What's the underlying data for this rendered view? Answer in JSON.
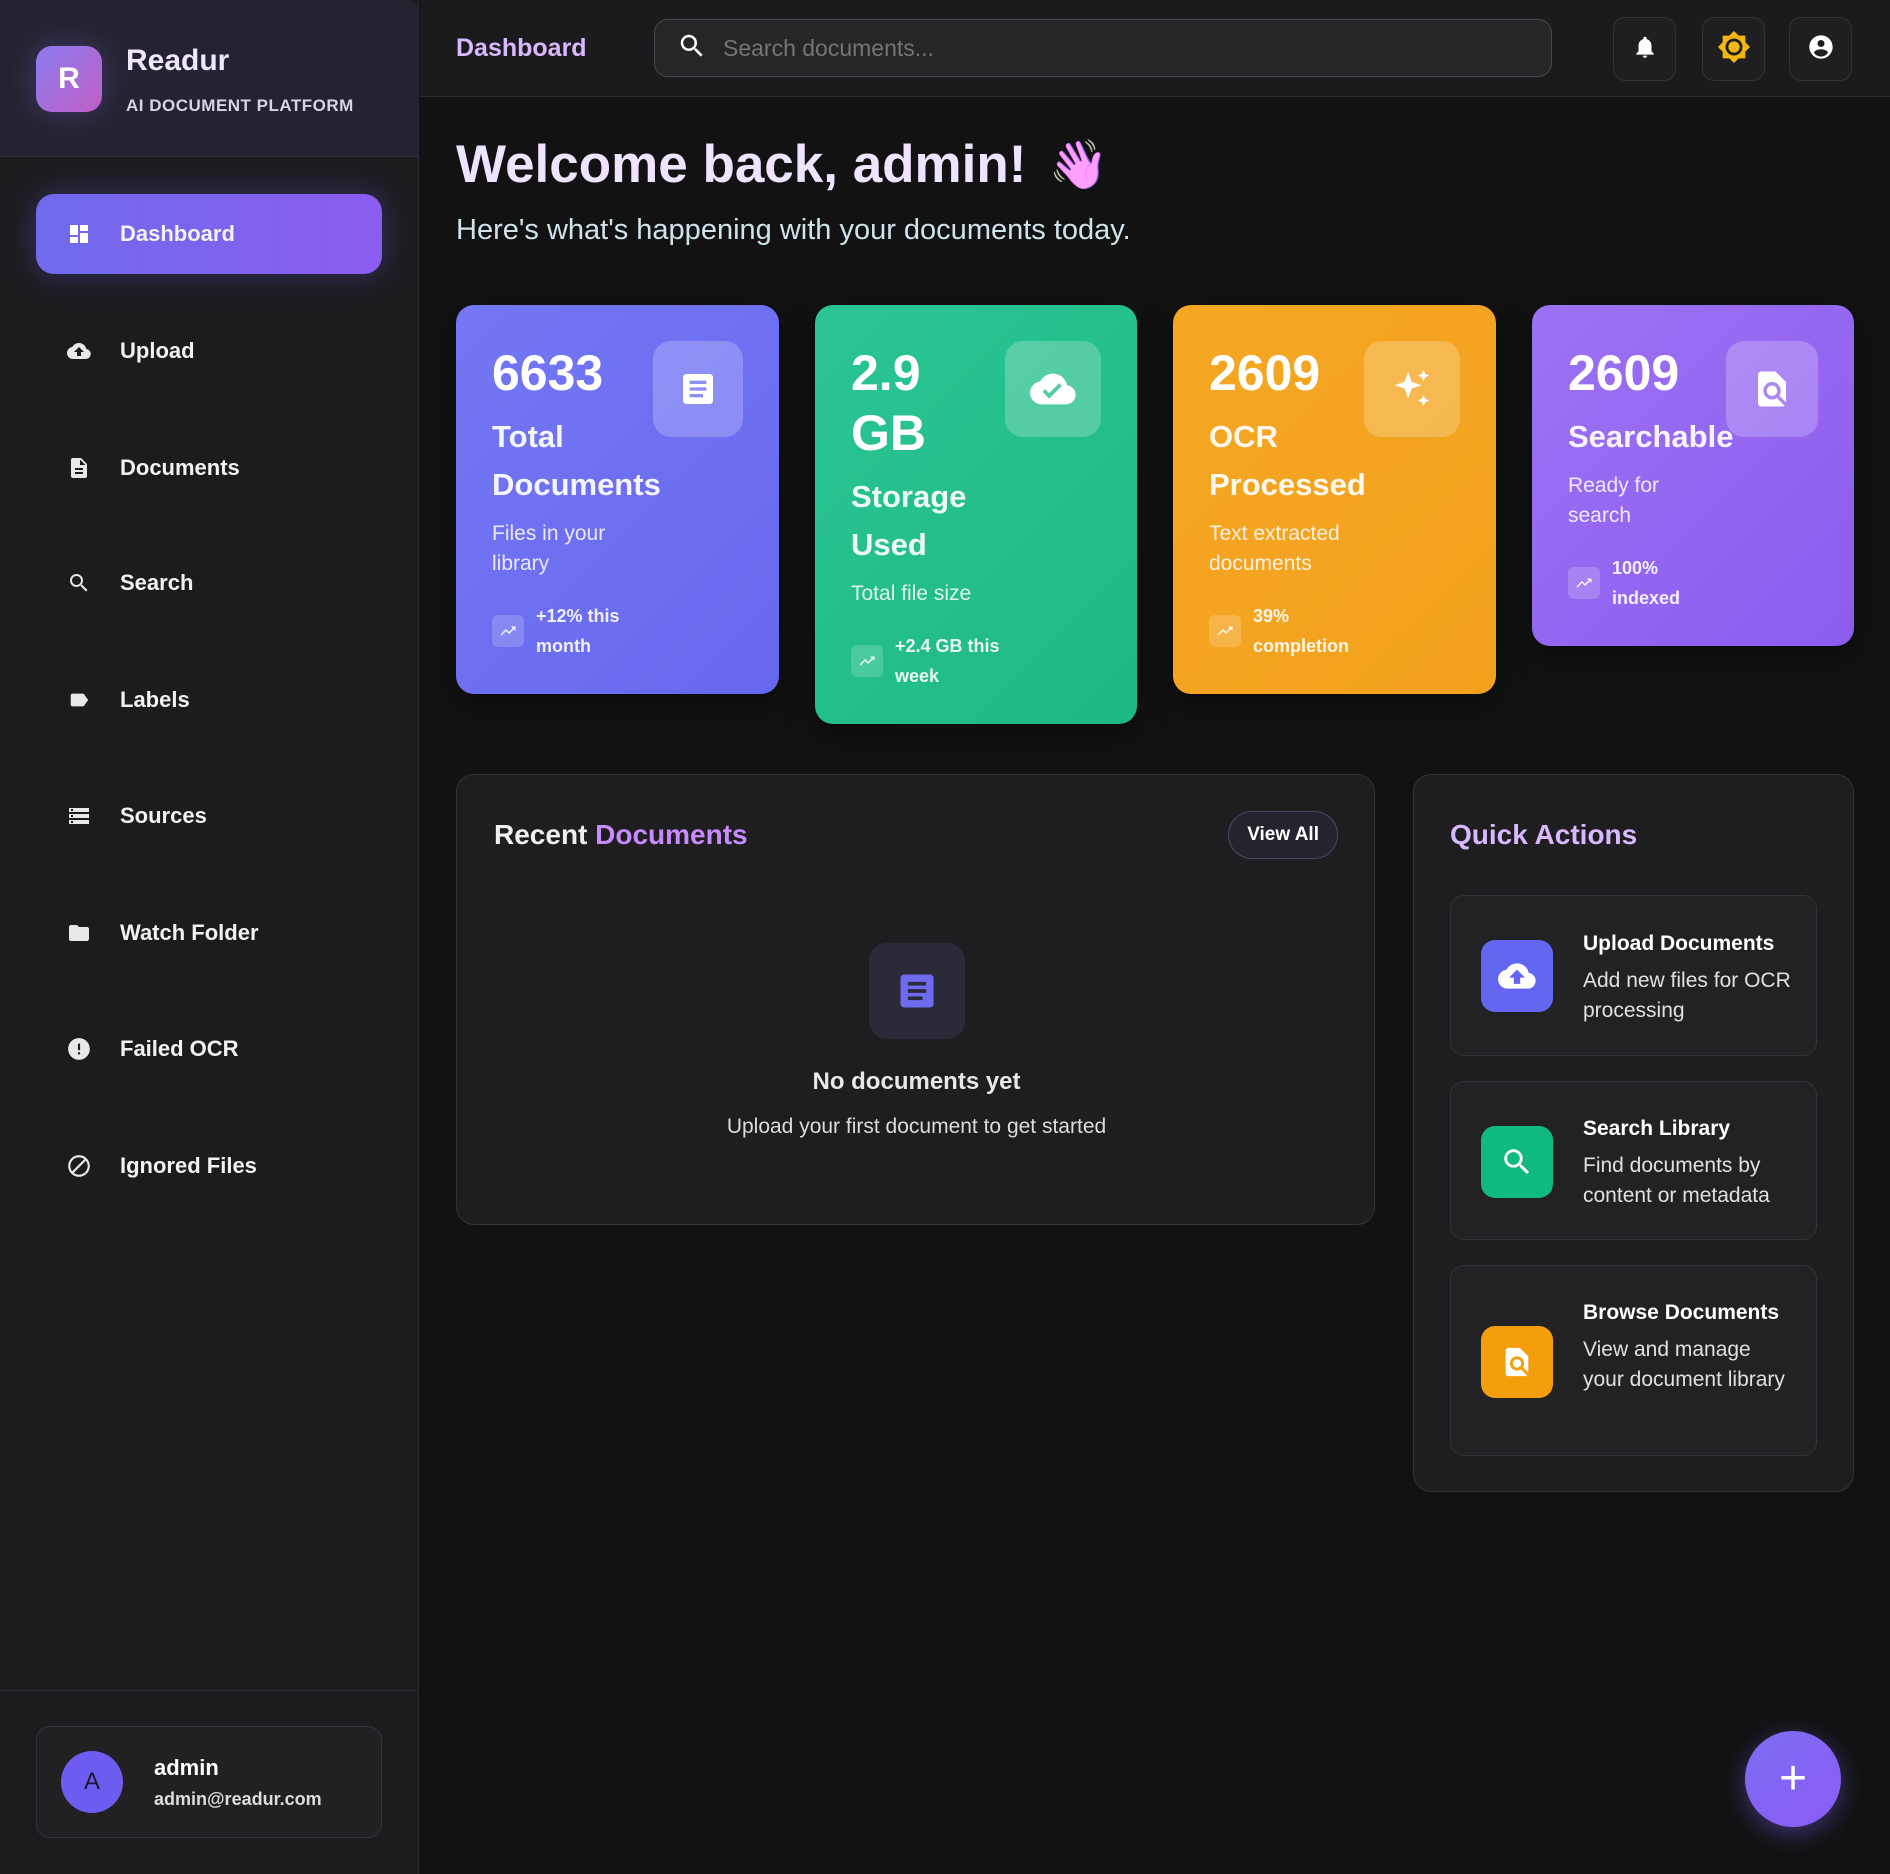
{
  "brand": {
    "logo_letter": "R",
    "name": "Readur",
    "tagline": "AI DOCUMENT PLATFORM"
  },
  "sidebar": {
    "items": [
      {
        "label": "Dashboard",
        "icon": "dashboard-icon",
        "active": true
      },
      {
        "label": "Upload",
        "icon": "cloud-upload-icon"
      },
      {
        "label": "Documents",
        "icon": "document-icon"
      },
      {
        "label": "Search",
        "icon": "search-icon"
      },
      {
        "label": "Labels",
        "icon": "label-icon"
      },
      {
        "label": "Sources",
        "icon": "storage-icon"
      },
      {
        "label": "Watch Folder",
        "icon": "folder-icon"
      },
      {
        "label": "Failed OCR",
        "icon": "error-icon"
      },
      {
        "label": "Ignored Files",
        "icon": "block-icon"
      }
    ]
  },
  "user": {
    "initial": "A",
    "name": "admin",
    "email": "admin@readur.com"
  },
  "header": {
    "title": "Dashboard",
    "search_placeholder": "Search documents..."
  },
  "welcome": {
    "title": "Welcome back, admin!",
    "emoji": "👋",
    "subtitle": "Here's what's happening with your documents today."
  },
  "stats": [
    {
      "value": "6633",
      "title": "Total Documents",
      "sub": "Files in your library",
      "trend": "+12% this month",
      "icon": "document-icon",
      "color": "#6e6ef0"
    },
    {
      "value": "2.9 GB",
      "title": "Storage Used",
      "sub": "Total file size",
      "trend": "+2.4 GB this week",
      "icon": "cloud-done-icon",
      "color": "#22bf8a"
    },
    {
      "value": "2609",
      "title": "OCR Processed",
      "sub": "Text extracted documents",
      "trend": "39% completion",
      "icon": "sparkle-icon",
      "color": "#f4a523"
    },
    {
      "value": "2609",
      "title": "Searchable",
      "sub": "Ready for search",
      "trend": "100% indexed",
      "icon": "find-in-page-icon",
      "color": "#9068f0"
    }
  ],
  "recent": {
    "title_a": "Recent",
    "title_b": "Documents",
    "view_all": "View All",
    "empty_title": "No documents yet",
    "empty_sub": "Upload your first document to get started"
  },
  "quick": {
    "title": "Quick Actions",
    "items": [
      {
        "title": "Upload Documents",
        "desc": "Add new files for OCR processing",
        "color": "#6366f1"
      },
      {
        "title": "Search Library",
        "desc": "Find documents by content or metadata",
        "color": "#10b981"
      },
      {
        "title": "Browse Documents",
        "desc": "View and manage your document library",
        "color": "#f59e0b"
      }
    ]
  },
  "fab": {
    "label": "+"
  }
}
